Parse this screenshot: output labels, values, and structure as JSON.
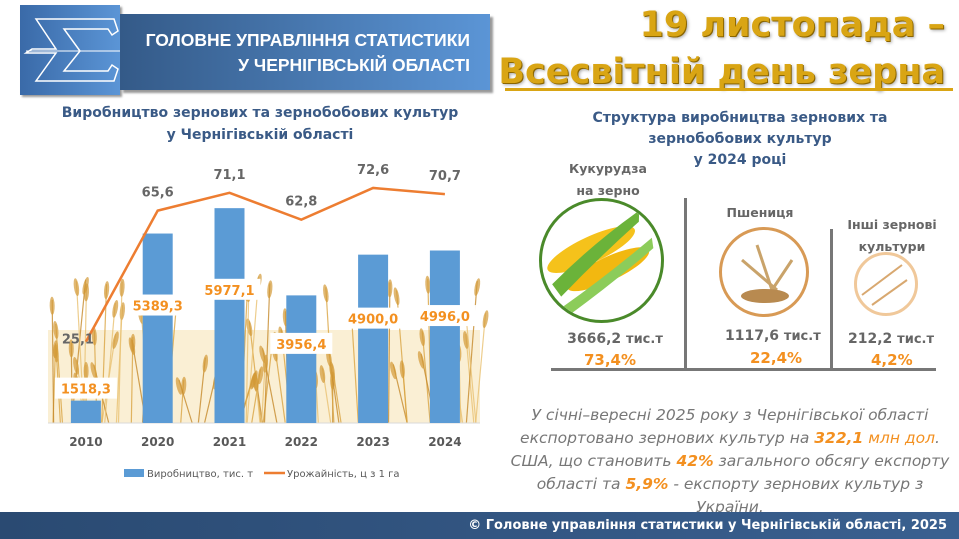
{
  "header": {
    "org_line1": "ГОЛОВНЕ УПРАВЛІННЯ СТАТИСТИКИ",
    "org_line2": "У ЧЕРНІГІВСЬКІЙ ОБЛАСТІ",
    "logo_icon": "sigma-logo-icon",
    "event_line1": "19 листопада –",
    "event_line2": "Всесвітній день зерна",
    "accent": "#d9a514"
  },
  "chart_data": {
    "type": "bar+line",
    "title_line1": "Виробництво зернових та зернобобових культур",
    "title_line2": "у Чернігівській області",
    "categories": [
      "2010",
      "2020",
      "2021",
      "2022",
      "2023",
      "2024"
    ],
    "series": [
      {
        "name": "Виробництво, тис. т",
        "type": "bar",
        "color": "#5b9bd5",
        "values": [
          1518.3,
          5389.3,
          5977.1,
          3956.4,
          4900.0,
          4996.0
        ],
        "labels": [
          "1518,3",
          "5389,3",
          "5977,1",
          "3956,4",
          "4900,0",
          "4996,0"
        ],
        "ylim": [
          1000,
          7000
        ]
      },
      {
        "name": "Урожайність, ц з 1 га",
        "type": "line",
        "color": "#ed7d31",
        "values": [
          25.1,
          65.6,
          71.1,
          62.8,
          72.6,
          70.7
        ],
        "labels": [
          "25,1",
          "65,6",
          "71,1",
          "62,8",
          "72,6",
          "70,7"
        ],
        "ylim": [
          0,
          80
        ]
      }
    ],
    "legend": "bottom",
    "grid": false
  },
  "structure": {
    "title_line1": "Структура виробництва зернових та",
    "title_line2": "зернобобових культур",
    "title_line3": "у 2024 році",
    "items": [
      {
        "name_line1": "Кукурудза",
        "name_line2": "на зерно",
        "value": "3666,2",
        "unit": "тис.т",
        "share": "73,4%",
        "icon": "corn-icon"
      },
      {
        "name_line1": "Пшениця",
        "name_line2": "",
        "value": "1117,6",
        "unit": "тис.т",
        "share": "22,4%",
        "icon": "wheat-icon"
      },
      {
        "name_line1": "Інші зернові",
        "name_line2": "культури",
        "value": "212,2",
        "unit": "тис.т",
        "share": "4,2%",
        "icon": "oats-icon"
      }
    ]
  },
  "note": {
    "p1": "У січні–вересні 2025 року з Чернігівської області експортовано зернових культур на ",
    "h1": "322,1",
    "p2": " ",
    "h2": "млн дол",
    "p3": ". США, що становить ",
    "h3": "42%",
    "p4": " загального обсягу експорту області та ",
    "h4": "5,9%",
    "p5": " - експорту зернових культур з України."
  },
  "footer": {
    "text": "© Головне управління статистики у Чернігівській області, 2025"
  }
}
